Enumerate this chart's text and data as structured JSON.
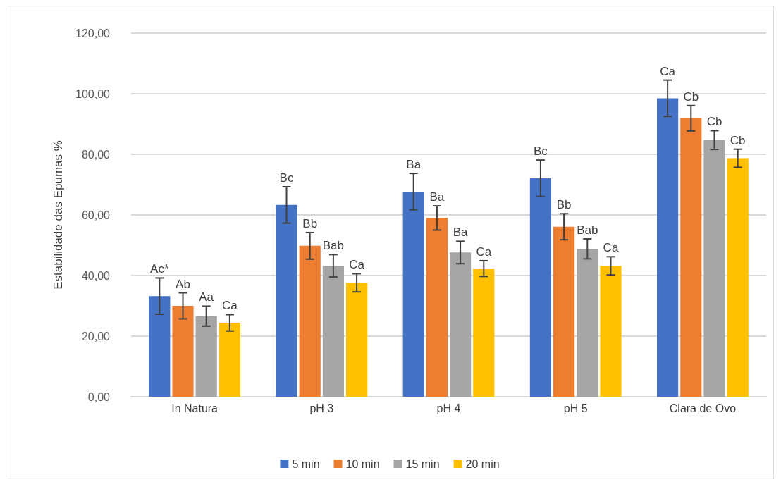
{
  "chart_data": {
    "type": "bar",
    "ylabel": "Estabilidade das Epumas %",
    "categories": [
      "In Natura",
      "pH 3",
      "pH 4",
      "pH 5",
      "Clara de Ovo"
    ],
    "series": [
      {
        "name": "5 min",
        "color": "#4472c4",
        "values": [
          33.2,
          63.3,
          67.7,
          72.1,
          98.5
        ],
        "errors": [
          6,
          6,
          6,
          6,
          6
        ],
        "value_labels": [
          "Ac*",
          "Bc",
          "Ba",
          "Bc",
          "Ca"
        ]
      },
      {
        "name": "10 min",
        "color": "#ed7d31",
        "values": [
          30.0,
          49.8,
          59.0,
          56.1,
          91.9
        ],
        "errors": [
          4.3,
          4.4,
          4,
          4.3,
          4.2
        ],
        "value_labels": [
          "Ab",
          "Bb",
          "Ba",
          "Bb",
          "Cb"
        ]
      },
      {
        "name": "15 min",
        "color": "#a5a5a5",
        "values": [
          26.6,
          43.2,
          47.6,
          48.8,
          84.7
        ],
        "errors": [
          3.3,
          3.7,
          3.7,
          3.3,
          3.1
        ],
        "value_labels": [
          "Aa",
          "Bab",
          "Ba",
          "Bab",
          "Cb"
        ]
      },
      {
        "name": "20 min",
        "color": "#ffc000",
        "values": [
          24.4,
          37.6,
          42.3,
          43.2,
          78.7
        ],
        "errors": [
          2.7,
          3,
          2.6,
          3,
          3
        ],
        "value_labels": [
          "Ca",
          "Ca",
          "Ca",
          "Ca",
          "Cb"
        ]
      }
    ],
    "ylim": [
      0,
      120
    ],
    "yticks": [
      {
        "value": 0,
        "label": "0,00"
      },
      {
        "value": 20,
        "label": "20,00"
      },
      {
        "value": 40,
        "label": "40,00"
      },
      {
        "value": 60,
        "label": "60,00"
      },
      {
        "value": 80,
        "label": "80,00"
      },
      {
        "value": 100,
        "label": "100,00"
      },
      {
        "value": 120,
        "label": "120,00"
      }
    ],
    "grid": "y",
    "legend": "bottom"
  }
}
